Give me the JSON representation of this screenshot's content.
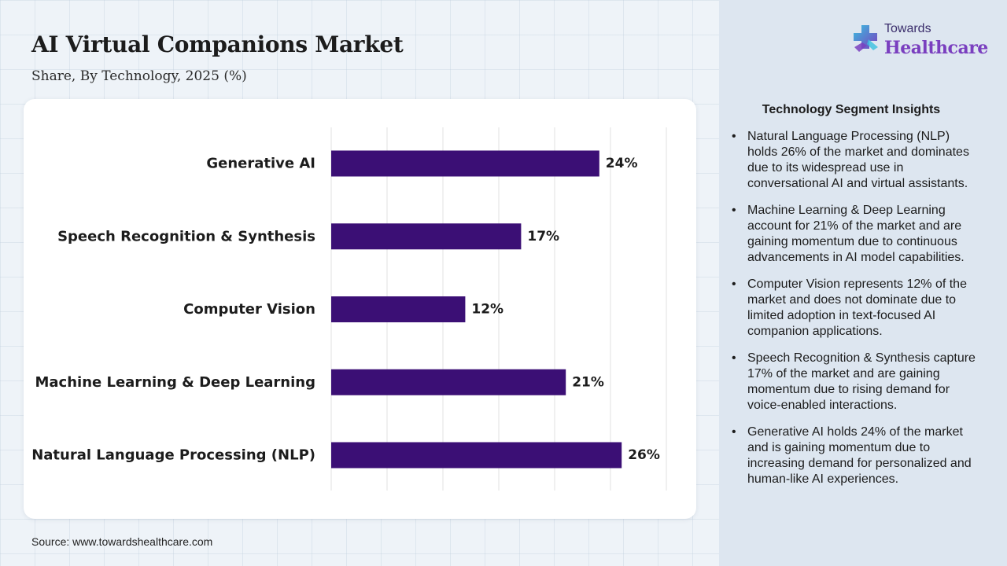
{
  "header": {
    "title": "AI Virtual Companions Market",
    "subtitle": "Share, By Technology, 2025 (%)"
  },
  "source": "Source: www.towardshealthcare.com",
  "logo": {
    "line1": "Towards",
    "line2": "Healthcare",
    "icon": "medical-cross-icon"
  },
  "insights": {
    "title": "Technology Segment Insights",
    "items": [
      "Natural Language Processing (NLP) holds 26% of the market and dominates due to its widespread use in conversational AI and virtual assistants.",
      "Machine Learning & Deep Learning account for 21% of the market and are gaining momentum due to continuous advancements in AI model capabilities.",
      "Computer Vision represents 12% of the market and does not dominate due to limited adoption in text-focused AI companion applications.",
      "Speech Recognition & Synthesis capture 17% of the market and are gaining momentum due to rising demand for voice-enabled interactions.",
      "Generative AI holds 24% of the market and is gaining momentum due to increasing demand for personalized and human-like AI experiences."
    ]
  },
  "chart_data": {
    "type": "bar",
    "orientation": "horizontal",
    "categories": [
      "Generative AI",
      "Speech Recognition & Synthesis",
      "Computer Vision",
      "Machine Learning & Deep Learning",
      "Natural Language Processing (NLP)"
    ],
    "values": [
      24,
      17,
      12,
      21,
      26
    ],
    "value_labels": [
      "24%",
      "17%",
      "12%",
      "21%",
      "26%"
    ],
    "xlim": [
      0,
      30
    ],
    "grid": true,
    "legend": "none",
    "bar_color": "#3b0f75"
  },
  "colors": {
    "bar": "#3b0f75",
    "accent": "#7a3fbf",
    "panel": "#dde6f0"
  }
}
